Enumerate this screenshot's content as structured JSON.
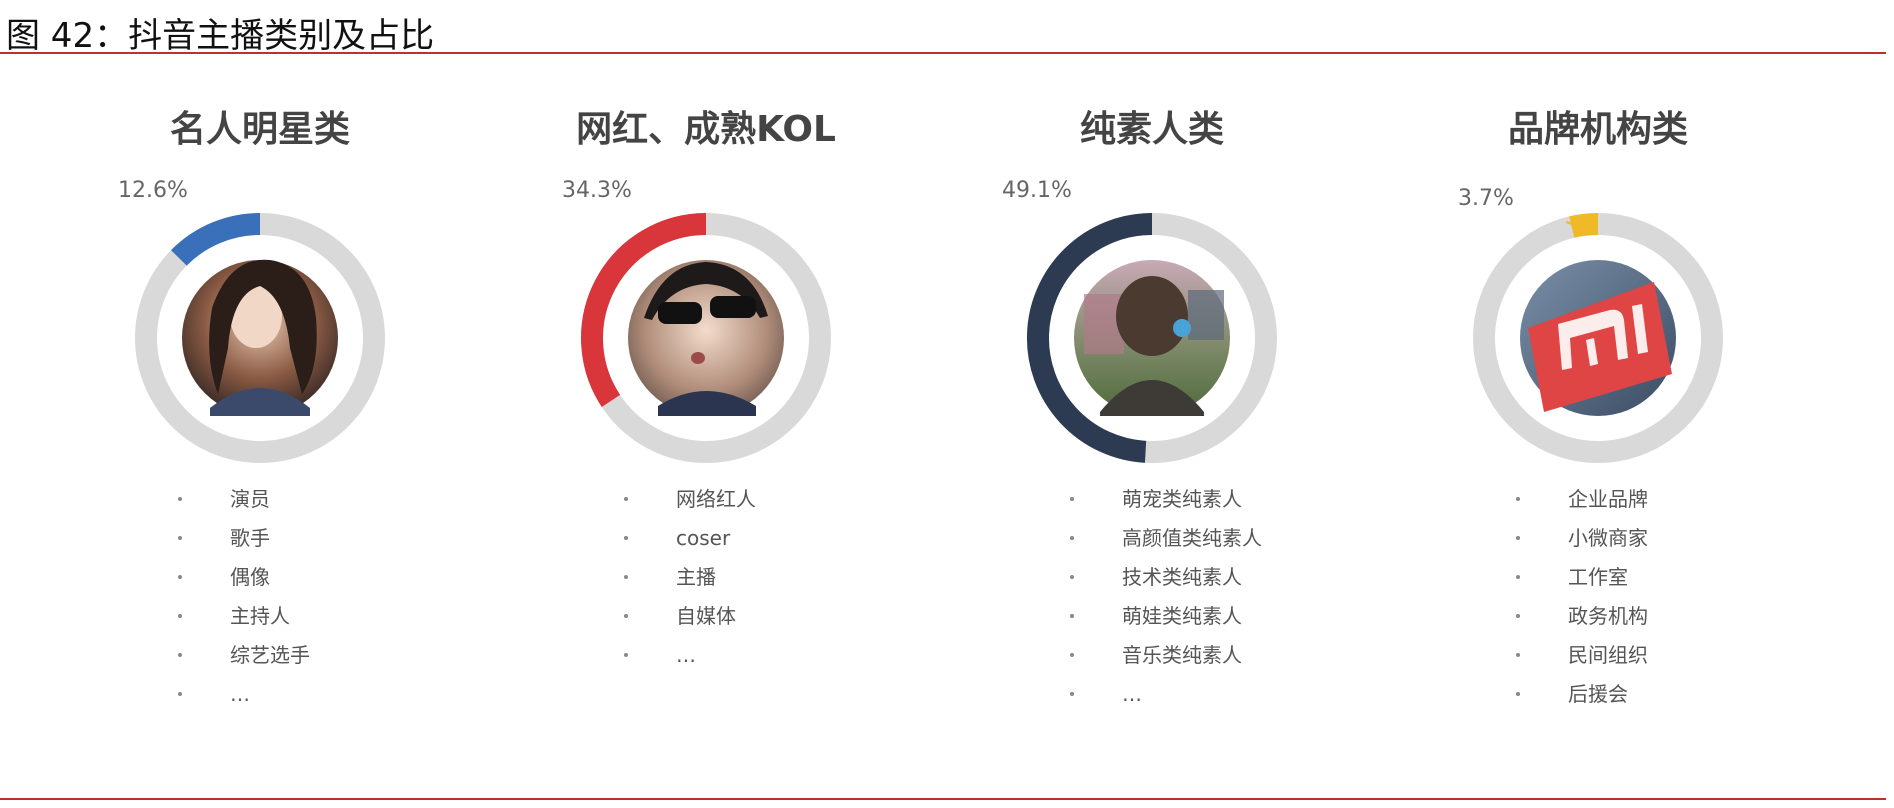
{
  "figure_title": "图 42：抖音主播类别及占比",
  "colors": {
    "rule": "#c0302a",
    "track": "#d9d9d9",
    "celebrity": "#3a70b9",
    "kol": "#d9363b",
    "ordinary": "#2c3a52",
    "brand": "#f0b928"
  },
  "chart_data": [
    {
      "type": "pie",
      "title": "名人明星类",
      "values": [
        12.6
      ],
      "value_label": "12.6%",
      "color": "#3a70b9",
      "icon": "celebrity-portrait-photo",
      "items": [
        "演员",
        "歌手",
        "偶像",
        "主持人",
        "综艺选手",
        "…"
      ]
    },
    {
      "type": "pie",
      "title": "网红、成熟KOL",
      "values": [
        34.3
      ],
      "value_label": "34.3%",
      "color": "#d9363b",
      "icon": "influencer-sunglasses-photo",
      "items": [
        "网络红人",
        "coser",
        "主播",
        "自媒体",
        "…"
      ]
    },
    {
      "type": "pie",
      "title": "纯素人类",
      "values": [
        49.1
      ],
      "value_label": "49.1%",
      "color": "#2c3a52",
      "icon": "ordinary-person-photo",
      "items": [
        "萌宠类纯素人",
        "高颜值类纯素人",
        "技术类纯素人",
        "萌娃类纯素人",
        "音乐类纯素人",
        "…"
      ]
    },
    {
      "type": "pie",
      "title": "品牌机构类",
      "values": [
        3.7
      ],
      "value_label": "3.7%",
      "color": "#f0b928",
      "icon": "xiaomi-logo-photo",
      "items": [
        "企业品牌",
        "小微商家",
        "工作室",
        "政务机构",
        "民间组织",
        "后援会"
      ]
    }
  ]
}
